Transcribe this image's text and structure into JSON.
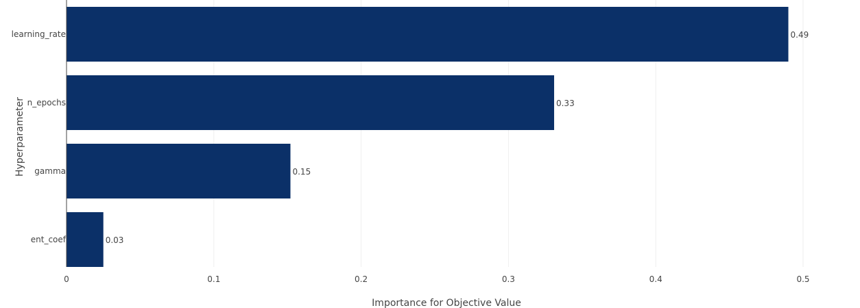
{
  "chart_data": {
    "type": "bar",
    "orientation": "horizontal",
    "categories": [
      "learning_rate",
      "n_epochs",
      "gamma",
      "ent_coef"
    ],
    "values": [
      0.49,
      0.331,
      0.152,
      0.025
    ],
    "value_labels": [
      "0.49",
      "0.33",
      "0.15",
      "0.03"
    ],
    "xlabel": "Importance for Objective Value",
    "ylabel": "Hyperparameter",
    "xlim": [
      0,
      0.52
    ],
    "xticks": [
      0,
      0.1,
      0.2,
      0.3,
      0.4,
      0.5
    ],
    "xtick_labels": [
      "0",
      "0.1",
      "0.2",
      "0.3",
      "0.4",
      "0.5"
    ],
    "grid": true,
    "bar_color": "#0b3068",
    "grid_color": "#eeeeee"
  }
}
